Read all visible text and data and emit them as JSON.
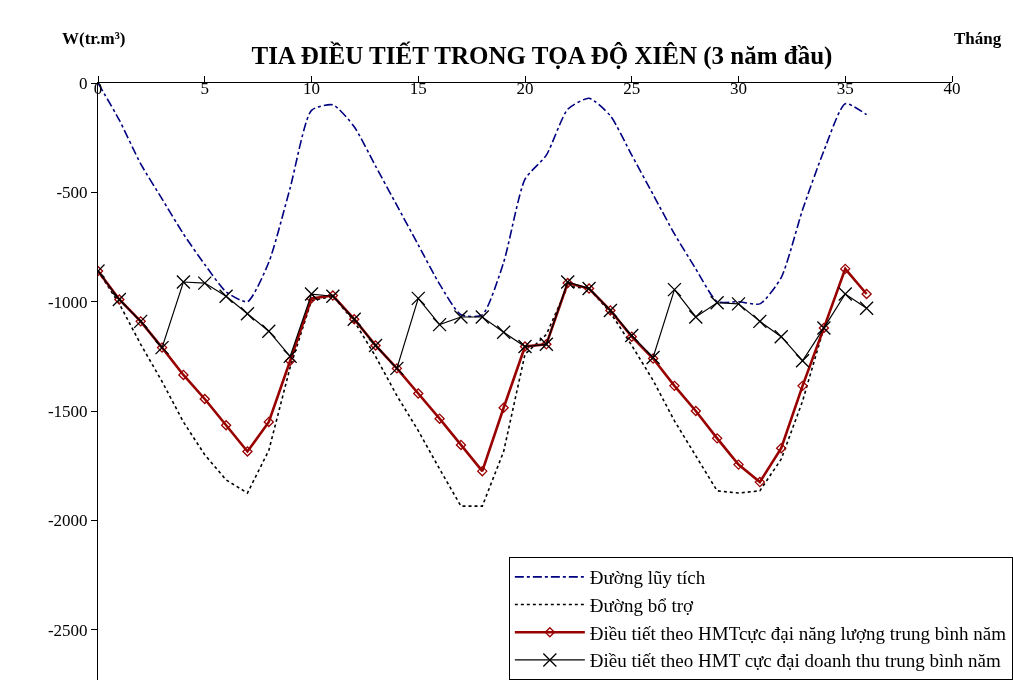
{
  "chart_data": {
    "type": "line",
    "title": "TIA ĐIỀU TIẾT TRONG TỌA ĐỘ XIÊN (3 năm đầu)",
    "xlabel": "Tháng",
    "ylabel": "W(tr.m³)",
    "x": [
      0,
      1,
      2,
      3,
      4,
      5,
      6,
      7,
      8,
      9,
      10,
      11,
      12,
      13,
      14,
      15,
      16,
      17,
      18,
      19,
      20,
      21,
      22,
      23,
      24,
      25,
      26,
      27,
      28,
      29,
      30,
      31,
      32,
      33,
      34,
      35,
      36
    ],
    "xlim": [
      0,
      40
    ],
    "xticks": [
      0,
      5,
      10,
      15,
      20,
      25,
      30,
      35,
      40
    ],
    "ylim": [
      -2730,
      0
    ],
    "yticks": [
      0,
      -500,
      -1000,
      -1500,
      -2000,
      -2500
    ],
    "legend": "bottom right",
    "series": [
      {
        "name": "Đường lũy tích",
        "color": "#000080",
        "line_style": "dashdot",
        "marker": "none",
        "values": [
          0,
          -170,
          -370,
          -530,
          -690,
          -830,
          -955,
          -1000,
          -820,
          -480,
          -125,
          -100,
          -200,
          -380,
          -560,
          -740,
          -920,
          -1060,
          -1060,
          -820,
          -440,
          -330,
          -120,
          -70,
          -150,
          -330,
          -510,
          -690,
          -850,
          -1000,
          -1000,
          -1010,
          -890,
          -580,
          -310,
          -95,
          -145
        ]
      },
      {
        "name": "Đường bổ trợ",
        "color": "#000000",
        "line_style": "dotted",
        "marker": "none",
        "values": [
          -860,
          -1010,
          -1195,
          -1365,
          -1550,
          -1700,
          -1815,
          -1875,
          -1680,
          -1300,
          -995,
          -975,
          -1090,
          -1250,
          -1430,
          -1590,
          -1765,
          -1935,
          -1935,
          -1685,
          -1240,
          -1150,
          -930,
          -940,
          -1050,
          -1200,
          -1360,
          -1545,
          -1705,
          -1865,
          -1875,
          -1865,
          -1720,
          -1455,
          -1120,
          null,
          null
        ]
      },
      {
        "name": "Điều tiết theo HMTcực đại năng lượng trung bình năm",
        "color": "#990000",
        "line_style": "solid",
        "marker": "diamond",
        "values": [
          -860,
          -990,
          -1090,
          -1210,
          -1335,
          -1445,
          -1565,
          -1685,
          -1550,
          -1270,
          -985,
          -972,
          -1080,
          -1200,
          -1305,
          -1420,
          -1535,
          -1655,
          -1775,
          -1485,
          -1205,
          -1195,
          -915,
          -940,
          -1040,
          -1160,
          -1260,
          -1385,
          -1500,
          -1625,
          -1745,
          -1825,
          -1670,
          -1385,
          -1120,
          -850,
          -965
        ]
      },
      {
        "name": "Điều tiết theo HMT cực đại doanh thu trung bình năm",
        "color": "#000000",
        "line_style": "solid",
        "marker": "cross",
        "values": [
          -860,
          -990,
          -1090,
          -1210,
          -910,
          -915,
          -975,
          -1055,
          -1135,
          -1250,
          -965,
          -975,
          -1080,
          -1200,
          -1305,
          -985,
          -1105,
          -1070,
          -1070,
          -1140,
          -1205,
          -1195,
          -910,
          -940,
          -1040,
          -1155,
          -1255,
          -945,
          -1070,
          -1005,
          -1010,
          -1090,
          -1160,
          -1270,
          -1120,
          -965,
          -1030
        ]
      }
    ]
  }
}
